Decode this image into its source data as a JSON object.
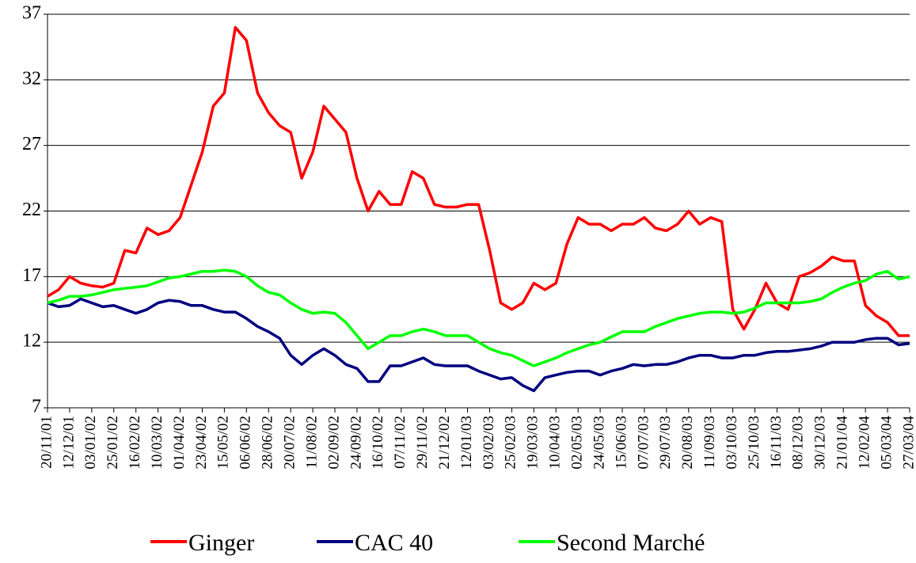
{
  "chart_data": {
    "type": "line",
    "categories": [
      "20/11/01",
      null,
      "12/12/01",
      null,
      "03/01/02",
      null,
      "25/01/02",
      null,
      "16/02/02",
      null,
      "10/03/02",
      null,
      "01/04/02",
      null,
      "23/04/02",
      null,
      "15/05/02",
      null,
      "06/06/02",
      null,
      "28/06/02",
      null,
      "20/07/02",
      null,
      "11/08/02",
      null,
      "02/09/02",
      null,
      "24/09/02",
      null,
      "16/10/02",
      null,
      "07/11/02",
      null,
      "29/11/02",
      null,
      "21/12/02",
      null,
      "12/01/03",
      null,
      "03/02/03",
      null,
      "25/02/03",
      null,
      "19/03/03",
      null,
      "10/04/03",
      null,
      "02/05/03",
      null,
      "24/05/03",
      null,
      "15/06/03",
      null,
      "07/07/03",
      null,
      "29/07/03",
      null,
      "20/08/03",
      null,
      "11/09/03",
      null,
      "03/10/03",
      null,
      "25/10/03",
      null,
      "16/11/03",
      null,
      "08/12/03",
      null,
      "30/12/03",
      null,
      "21/01/04",
      null,
      "12/02/04",
      null,
      "05/03/04",
      null,
      "27/03/04"
    ],
    "series": [
      {
        "name": "Ginger",
        "color": "#ff0000",
        "values": [
          15.5,
          16,
          17,
          16.5,
          16.3,
          16.2,
          16.5,
          19,
          18.8,
          20.7,
          20.2,
          20.5,
          21.5,
          24,
          26.5,
          30,
          31,
          36,
          35,
          31,
          29.5,
          28.5,
          28,
          24.5,
          26.5,
          30,
          29,
          28,
          24.5,
          22,
          23.5,
          22.5,
          22.5,
          25,
          24.5,
          22.5,
          22.3,
          22.3,
          22.5,
          22.5,
          19,
          15,
          14.5,
          15,
          16.5,
          16,
          16.5,
          19.5,
          21.5,
          21,
          21,
          20.5,
          21,
          21,
          21.5,
          20.7,
          20.5,
          21,
          22,
          21,
          21.5,
          21.2,
          14.5,
          13,
          14.5,
          16.5,
          15,
          14.5,
          17,
          17.3,
          17.8,
          18.5,
          18.2,
          18.2,
          14.8,
          14,
          13.5,
          12.5,
          12.5
        ]
      },
      {
        "name": "CAC 40",
        "color": "#000080",
        "values": [
          15,
          14.7,
          14.8,
          15.3,
          15,
          14.7,
          14.8,
          14.5,
          14.2,
          14.5,
          15,
          15.2,
          15.1,
          14.8,
          14.8,
          14.5,
          14.3,
          14.3,
          13.8,
          13.2,
          12.8,
          12.3,
          11,
          10.3,
          11,
          11.5,
          11,
          10.3,
          10,
          9,
          9,
          10.2,
          10.2,
          10.5,
          10.8,
          10.3,
          10.2,
          10.2,
          10.2,
          9.8,
          9.5,
          9.2,
          9.3,
          8.7,
          8.3,
          9.3,
          9.5,
          9.7,
          9.8,
          9.8,
          9.5,
          9.8,
          10,
          10.3,
          10.2,
          10.3,
          10.3,
          10.5,
          10.8,
          11,
          11,
          10.8,
          10.8,
          11,
          11,
          11.2,
          11.3,
          11.3,
          11.4,
          11.5,
          11.7,
          12,
          12,
          12,
          12.2,
          12.3,
          12.3,
          11.8,
          11.9
        ]
      },
      {
        "name": "Second Marché",
        "color": "#00ff00",
        "values": [
          15,
          15.2,
          15.5,
          15.5,
          15.6,
          15.8,
          16,
          16.1,
          16.2,
          16.3,
          16.6,
          16.9,
          17,
          17.2,
          17.4,
          17.4,
          17.5,
          17.4,
          17,
          16.3,
          15.8,
          15.6,
          15,
          14.5,
          14.2,
          14.3,
          14.2,
          13.5,
          12.5,
          11.5,
          12,
          12.5,
          12.5,
          12.8,
          13,
          12.8,
          12.5,
          12.5,
          12.5,
          12,
          11.5,
          11.2,
          11,
          10.6,
          10.2,
          10.5,
          10.8,
          11.2,
          11.5,
          11.8,
          12,
          12.4,
          12.8,
          12.8,
          12.8,
          13.2,
          13.5,
          13.8,
          14,
          14.2,
          14.3,
          14.3,
          14.2,
          14.3,
          14.6,
          15,
          15,
          15,
          15,
          15.1,
          15.3,
          15.8,
          16.2,
          16.5,
          16.7,
          17.2,
          17.4,
          16.8,
          17
        ]
      }
    ],
    "ylim": [
      7,
      37
    ],
    "yticks": [
      7,
      12,
      17,
      22,
      27,
      32,
      37
    ],
    "grid": true
  }
}
